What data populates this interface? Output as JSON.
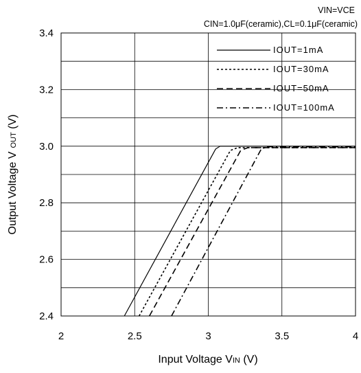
{
  "conditions": {
    "line1": "VIN=VCE",
    "line2": "CIN=1.0μF(ceramic),CL=0.1μF(ceramic)"
  },
  "chart_data": {
    "type": "line",
    "xlabel": "Input Voltage VIN (V)",
    "xlabel_main": "Input Voltage V",
    "xlabel_sub": "IN",
    "xlabel_unit": " (V)",
    "ylabel": "Output Voltage VOUT (V)",
    "ylabel_main": "Output Voltage V",
    "ylabel_sub": "OUT",
    "ylabel_unit": " (V)",
    "xlim": [
      2,
      4
    ],
    "ylim": [
      2.4,
      3.4
    ],
    "xticks": [
      2,
      2.5,
      3,
      3.5,
      4
    ],
    "xtick_labels": [
      "2",
      "2.5",
      "3",
      "3.5",
      "4"
    ],
    "yticks": [
      2.4,
      2.6,
      2.8,
      3.0,
      3.2,
      3.4
    ],
    "ytick_labels": [
      "2.4",
      "2.6",
      "2.8",
      "3.0",
      "3.2",
      "3.4"
    ],
    "grid": true,
    "legend_position": "top-right",
    "series": [
      {
        "name": "IOUT=1mA",
        "dash": "solid",
        "x": [
          2.0,
          2.43,
          3.05,
          3.08,
          4.0
        ],
        "y": [
          2.4,
          2.4,
          2.99,
          3.0,
          3.0
        ]
      },
      {
        "name": "IOUT=30mA",
        "dash": "dotted",
        "x": [
          2.0,
          2.53,
          3.15,
          3.2,
          4.0
        ],
        "y": [
          2.4,
          2.4,
          2.985,
          2.995,
          2.995
        ]
      },
      {
        "name": "IOUT=50mA",
        "dash": "dashed",
        "x": [
          2.0,
          2.6,
          3.22,
          3.27,
          4.0
        ],
        "y": [
          2.4,
          2.4,
          2.985,
          2.995,
          2.995
        ]
      },
      {
        "name": "IOUT=100mA",
        "dash": "dashdot",
        "x": [
          2.0,
          2.75,
          3.36,
          3.4,
          4.0
        ],
        "y": [
          2.4,
          2.4,
          2.99,
          2.998,
          2.998
        ]
      }
    ]
  }
}
